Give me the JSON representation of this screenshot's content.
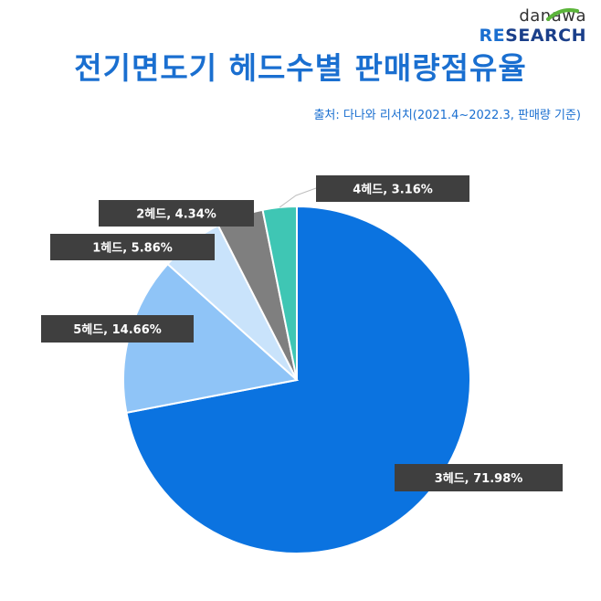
{
  "header": {
    "logo_top": "danawa",
    "logo_re": "RE",
    "logo_search": "SEARCH",
    "title": "전기면도기 헤드수별 판매량점유율",
    "source": "출처: 다나와 리서치(2021.4~2022.3, 판매량 기준)"
  },
  "colors": {
    "accent": "#1a6fd0",
    "label_box": "#3f3f3f"
  },
  "chart_data": {
    "type": "pie",
    "title": "전기면도기 헤드수별 판매량점유율",
    "slices": [
      {
        "name": "3헤드",
        "value": 71.98,
        "label": "3헤드, 71.98%",
        "color": "#0b73e0"
      },
      {
        "name": "5헤드",
        "value": 14.66,
        "label": "5헤드, 14.66%",
        "color": "#8fc4f7"
      },
      {
        "name": "1헤드",
        "value": 5.86,
        "label": "1헤드, 5.86%",
        "color": "#c9e3fb"
      },
      {
        "name": "2헤드",
        "value": 4.34,
        "label": "2헤드, 4.34%",
        "color": "#7f7f7f"
      },
      {
        "name": "4헤드",
        "value": 3.16,
        "label": "4헤드, 3.16%",
        "color": "#3fc6b4"
      }
    ]
  }
}
